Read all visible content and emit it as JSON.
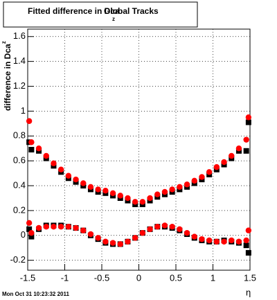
{
  "chart_data": {
    "type": "scatter",
    "title": "Fitted difference in Dca",
    "title_subscript": "z",
    "title_suffix": "Global Tracks",
    "y_label": "difference in Dca",
    "y_label_superscript": "z",
    "x_label": "η",
    "timestamp": "Mon Oct 31 10:23:32 2011",
    "x": [
      -1.48,
      -1.45,
      -1.35,
      -1.25,
      -1.15,
      -1.05,
      -0.95,
      -0.85,
      -0.75,
      -0.65,
      -0.55,
      -0.45,
      -0.35,
      -0.25,
      -0.15,
      -0.05,
      0.05,
      0.15,
      0.25,
      0.35,
      0.45,
      0.55,
      0.65,
      0.75,
      0.85,
      0.95,
      1.05,
      1.15,
      1.25,
      1.35,
      1.45,
      1.48
    ],
    "series": [
      {
        "color": "#000000",
        "marker": "square",
        "values": [
          0.75,
          0.69,
          0.68,
          0.62,
          0.56,
          0.51,
          0.46,
          0.43,
          0.4,
          0.37,
          0.35,
          0.34,
          0.32,
          0.3,
          0.28,
          0.25,
          0.25,
          0.28,
          0.31,
          0.33,
          0.35,
          0.37,
          0.39,
          0.42,
          0.45,
          0.49,
          0.53,
          0.57,
          0.62,
          0.68,
          0.68,
          0.91
        ]
      },
      {
        "color": "#000000",
        "marker": "square",
        "values": [
          0.05,
          -0.01,
          0.05,
          0.08,
          0.08,
          0.08,
          0.07,
          0.06,
          0.04,
          0.0,
          -0.03,
          -0.06,
          -0.07,
          -0.07,
          -0.05,
          -0.02,
          0.02,
          0.05,
          0.07,
          0.07,
          0.06,
          0.04,
          0.01,
          -0.02,
          -0.04,
          -0.05,
          -0.05,
          -0.04,
          -0.05,
          -0.06,
          -0.08,
          -0.14
        ]
      },
      {
        "color": "#ff0000",
        "marker": "circle",
        "values": [
          0.92,
          0.75,
          0.7,
          0.64,
          0.58,
          0.53,
          0.48,
          0.45,
          0.42,
          0.39,
          0.37,
          0.36,
          0.34,
          0.32,
          0.3,
          0.27,
          0.27,
          0.3,
          0.33,
          0.35,
          0.37,
          0.39,
          0.41,
          0.44,
          0.47,
          0.51,
          0.55,
          0.59,
          0.64,
          0.7,
          0.77,
          0.95
        ]
      },
      {
        "color": "#ff0000",
        "marker": "circle",
        "values": [
          0.1,
          0.02,
          0.06,
          0.07,
          0.07,
          0.07,
          0.07,
          0.06,
          0.04,
          0.01,
          -0.02,
          -0.05,
          -0.06,
          -0.07,
          -0.05,
          -0.02,
          0.02,
          0.05,
          0.07,
          0.08,
          0.07,
          0.05,
          0.02,
          -0.01,
          -0.03,
          -0.04,
          -0.05,
          -0.05,
          -0.04,
          -0.05,
          -0.04,
          0.04
        ]
      }
    ],
    "xlim": [
      -1.5,
      1.5
    ],
    "ylim": [
      -0.28,
      1.66
    ],
    "xticks": [
      -1.5,
      -1,
      -0.5,
      0,
      0.5,
      1,
      1.5
    ],
    "yticks": [
      -0.2,
      0,
      0.2,
      0.4,
      0.6,
      0.8,
      1,
      1.2,
      1.4,
      1.6
    ],
    "grid": true
  }
}
